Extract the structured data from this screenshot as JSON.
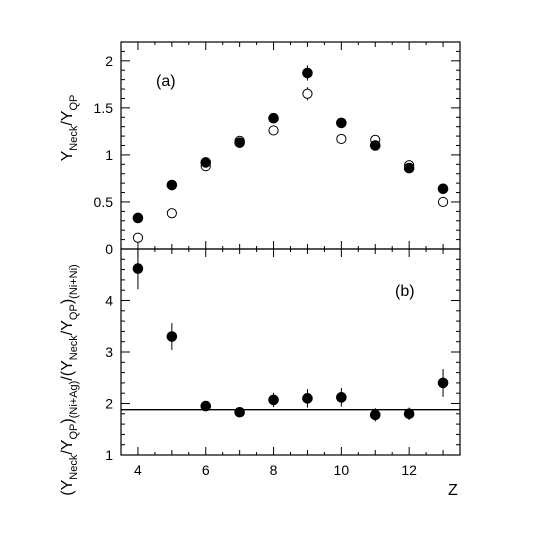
{
  "chart_data": [
    {
      "type": "scatter",
      "panel_label": "(a)",
      "ylabel": {
        "main": "Y",
        "sub": "Neck",
        "mid": "/Y",
        "sub2": "QP"
      },
      "xlim": [
        3.5,
        13.5
      ],
      "ylim": [
        0,
        2.2
      ],
      "yticks": [
        0,
        0.5,
        1,
        1.5,
        2
      ],
      "ytick_labels": [
        "0",
        "0.5",
        "1",
        "1.5",
        "2"
      ],
      "series": [
        {
          "marker": "filled-circle",
          "x": [
            4,
            5,
            6,
            7,
            8,
            9,
            10,
            11,
            12,
            13
          ],
          "y": [
            0.33,
            0.68,
            0.92,
            1.13,
            1.39,
            1.87,
            1.34,
            1.1,
            0.86,
            0.64
          ],
          "yerr": [
            0,
            0,
            0,
            0,
            0,
            0.08,
            0,
            0,
            0,
            0
          ]
        },
        {
          "marker": "open-circle",
          "x": [
            4,
            5,
            6,
            7,
            8,
            9,
            10,
            11,
            12,
            13
          ],
          "y": [
            0.12,
            0.38,
            0.88,
            1.15,
            1.26,
            1.65,
            1.17,
            1.16,
            0.89,
            0.5
          ],
          "yerr": [
            0,
            0,
            0,
            0,
            0,
            0.07,
            0,
            0,
            0,
            0
          ]
        }
      ]
    },
    {
      "type": "scatter",
      "panel_label": "(b)",
      "xlabel": "Z",
      "ylabel": {
        "part1": "(Y",
        "sub1": "Neck",
        "part2": "/Y",
        "sub2": "QP",
        "part3": ")",
        "sub3": "(Ni+Ag)",
        "part4": "/(Y",
        "sub4": "Neck",
        "part5": "/Y",
        "sub5": "QP",
        "part6": ")",
        "sub6": "(Ni+Ni)"
      },
      "xlim": [
        3.5,
        13.5
      ],
      "ylim": [
        1,
        5
      ],
      "xticks": [
        4,
        6,
        8,
        10,
        12
      ],
      "xtick_labels": [
        "4",
        "6",
        "8",
        "10",
        "12"
      ],
      "yticks": [
        1,
        2,
        3,
        4
      ],
      "ytick_labels": [
        "1",
        "2",
        "3",
        "4"
      ],
      "reference_line": 1.88,
      "series": [
        {
          "marker": "filled-circle",
          "x": [
            4,
            5,
            6,
            7,
            8,
            9,
            10,
            11,
            12,
            13
          ],
          "y": [
            4.62,
            3.3,
            1.95,
            1.83,
            2.07,
            2.1,
            2.12,
            1.78,
            1.8,
            2.4
          ],
          "yerr": [
            0.4,
            0.26,
            0.1,
            0.09,
            0.14,
            0.18,
            0.18,
            0.13,
            0.12,
            0.27
          ]
        }
      ]
    }
  ]
}
